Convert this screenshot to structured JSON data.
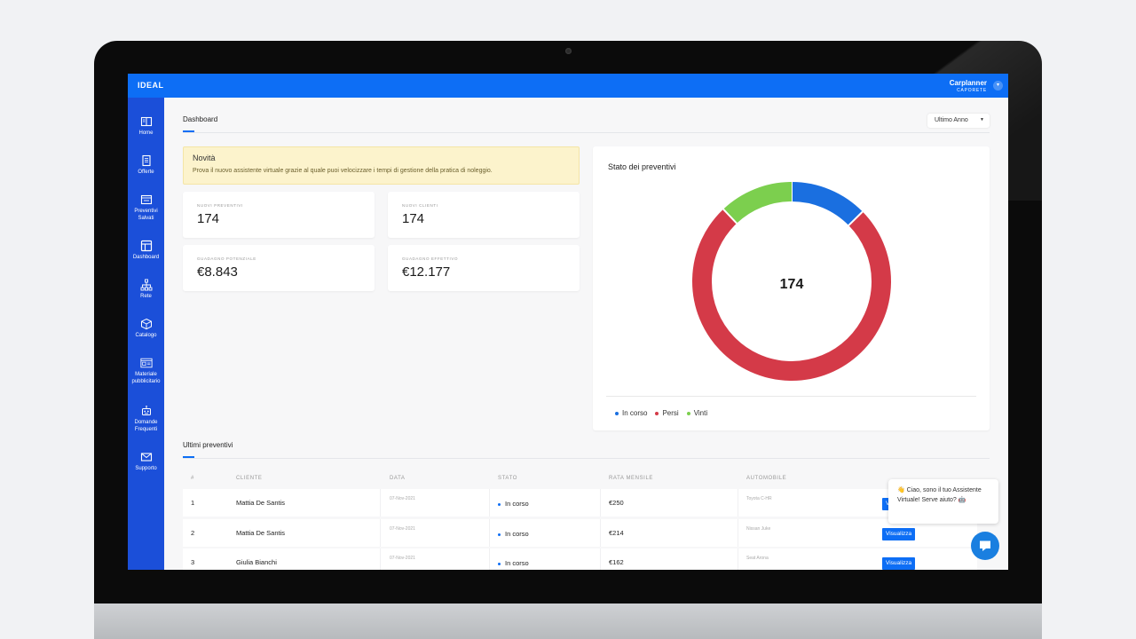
{
  "app": {
    "logo": "IDEAL"
  },
  "user": {
    "name": "Carplanner",
    "company": "CAPORETE",
    "dropdown_icon": "chevron-down-icon"
  },
  "sidebar": {
    "items": [
      {
        "label": "Home",
        "icon": "book-icon"
      },
      {
        "label": "Offerte",
        "icon": "document-icon"
      },
      {
        "label": "Preventivi Salvati",
        "icon": "inbox-icon"
      },
      {
        "label": "Dashboard",
        "icon": "layout-icon"
      },
      {
        "label": "Rete",
        "icon": "network-icon"
      },
      {
        "label": "Catalogo",
        "icon": "box-icon"
      },
      {
        "label": "Materiale pubblicitario",
        "icon": "browser-icon"
      },
      {
        "label": "Domande Frequenti",
        "icon": "robot-icon"
      },
      {
        "label": "Supporto",
        "icon": "mail-icon"
      }
    ]
  },
  "header": {
    "tab": "Dashboard",
    "period": "Ultimo Anno"
  },
  "news": {
    "title": "Novità",
    "text": "Prova il nuovo assistente virtuale grazie al quale puoi velocizzare i tempi di gestione della pratica di noleggio."
  },
  "stats": [
    {
      "label": "NUOVI PREVENTIVI",
      "value": "174"
    },
    {
      "label": "NUOVI CLIENTI",
      "value": "174"
    },
    {
      "label": "GUADAGNO POTENZIALE",
      "value": "€8.843"
    },
    {
      "label": "GUADAGNO EFFETTIVO",
      "value": "€12.177"
    }
  ],
  "chart_data": {
    "type": "pie",
    "title": "Stato dei preventivi",
    "center_label": "174",
    "legend_position": "bottom-left",
    "series": [
      {
        "name": "In corso",
        "value": 22,
        "color": "#1a6fe0"
      },
      {
        "name": "Persi",
        "value": 131,
        "color": "#d43a48"
      },
      {
        "name": "Vinti",
        "value": 21,
        "color": "#7ccf4e"
      }
    ]
  },
  "table": {
    "title": "Ultimi preventivi",
    "headers": [
      "#",
      "CLIENTE",
      "DATA",
      "STATO",
      "RATA MENSILE",
      "AUTOMOBILE"
    ],
    "rows": [
      {
        "n": "1",
        "cliente": "Mattia De Santis",
        "data": "07-Nov-2021",
        "stato": "In corso",
        "rata": "€250",
        "auto": "Toyota C-HR",
        "action": "Visualizza"
      },
      {
        "n": "2",
        "cliente": "Mattia De Santis",
        "data": "07-Nov-2021",
        "stato": "In corso",
        "rata": "€214",
        "auto": "Nissan Juke",
        "action": "Visualizza"
      },
      {
        "n": "3",
        "cliente": "Giulia Bianchi",
        "data": "07-Nov-2021",
        "stato": "In corso",
        "rata": "€162",
        "auto": "Seat Arona",
        "action": "Visualizza"
      }
    ]
  },
  "chat": {
    "message": "👋 Ciao, sono il tuo Assistente Virtuale! Serve aiuto? 🤖",
    "icon": "chat-icon"
  },
  "colors": {
    "primary": "#0d6ef5",
    "sidebar": "#1b4fd9"
  }
}
